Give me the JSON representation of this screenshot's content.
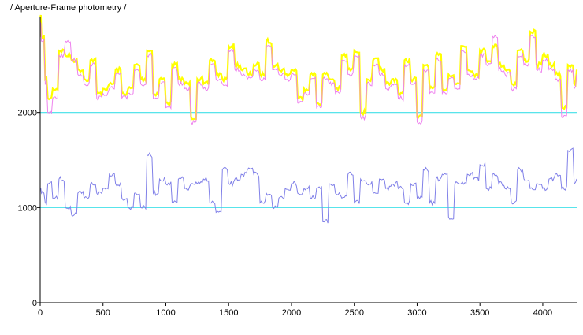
{
  "title": "/ Aperture-Frame photometry /",
  "chart_data": {
    "type": "line",
    "title": "/ Aperture-Frame photometry /",
    "xlabel": "",
    "ylabel": "",
    "xlim": [
      0,
      4270
    ],
    "ylim": [
      0,
      3000
    ],
    "x_ticks": [
      0,
      500,
      1000,
      1500,
      2000,
      2500,
      3000,
      3500,
      4000
    ],
    "y_ticks": [
      0,
      1000,
      2000
    ],
    "grid": false,
    "reference_lines": [
      {
        "y": 2000,
        "color": "#40e0e8"
      },
      {
        "y": 1000,
        "color": "#40e0e8"
      }
    ],
    "series": [
      {
        "color": "#ffff00",
        "x": [
          0,
          10,
          40,
          60,
          100,
          150,
          200,
          250,
          300,
          350,
          400,
          450,
          500,
          550,
          600,
          650,
          700,
          750,
          800,
          850,
          900,
          950,
          1000,
          1050,
          1100,
          1150,
          1200,
          1250,
          1300,
          1350,
          1400,
          1450,
          1500,
          1550,
          1600,
          1650,
          1700,
          1750,
          1800,
          1850,
          1900,
          1950,
          2000,
          2050,
          2100,
          2150,
          2200,
          2250,
          2300,
          2350,
          2400,
          2450,
          2500,
          2550,
          2600,
          2650,
          2700,
          2750,
          2800,
          2850,
          2900,
          2950,
          3000,
          3050,
          3100,
          3150,
          3200,
          3250,
          3300,
          3350,
          3400,
          3450,
          3500,
          3550,
          3600,
          3650,
          3700,
          3750,
          3800,
          3850,
          3900,
          3950,
          4000,
          4050,
          4100,
          4150,
          4200,
          4250,
          4270
        ],
        "y": [
          3000,
          2800,
          2350,
          2150,
          2250,
          2650,
          2600,
          2550,
          2450,
          2350,
          2550,
          2200,
          2250,
          2300,
          2450,
          2200,
          2250,
          2500,
          2350,
          2650,
          2200,
          2350,
          2100,
          2500,
          2350,
          2300,
          1950,
          2350,
          2300,
          2550,
          2400,
          2350,
          2700,
          2500,
          2450,
          2400,
          2500,
          2400,
          2750,
          2500,
          2450,
          2400,
          2450,
          2150,
          2250,
          2400,
          2100,
          2400,
          2350,
          2250,
          2600,
          2450,
          2650,
          2000,
          2350,
          2550,
          2450,
          2300,
          2350,
          2200,
          2550,
          2350,
          1950,
          2500,
          2250,
          2600,
          2250,
          2400,
          2300,
          2700,
          2450,
          2400,
          2650,
          2550,
          2700,
          2500,
          2450,
          2300,
          2650,
          2550,
          2850,
          2500,
          2600,
          2500,
          2400,
          2050,
          2500,
          2300,
          2450
        ]
      },
      {
        "color": "#ee82ee",
        "x": [
          0,
          10,
          40,
          60,
          100,
          150,
          200,
          250,
          300,
          350,
          400,
          450,
          500,
          550,
          600,
          650,
          700,
          750,
          800,
          850,
          900,
          950,
          1000,
          1050,
          1100,
          1150,
          1200,
          1250,
          1300,
          1350,
          1400,
          1450,
          1500,
          1550,
          1600,
          1650,
          1700,
          1750,
          1800,
          1850,
          1900,
          1950,
          2000,
          2050,
          2100,
          2150,
          2200,
          2250,
          2300,
          2350,
          2400,
          2450,
          2500,
          2550,
          2600,
          2650,
          2700,
          2750,
          2800,
          2850,
          2900,
          2950,
          3000,
          3050,
          3100,
          3150,
          3200,
          3250,
          3300,
          3350,
          3400,
          3450,
          3500,
          3550,
          3600,
          3650,
          3700,
          3750,
          3800,
          3850,
          3900,
          3950,
          4000,
          4050,
          4100,
          4150,
          4200,
          4250,
          4270
        ],
        "y": [
          2950,
          2750,
          2300,
          2000,
          2150,
          2600,
          2750,
          2550,
          2400,
          2300,
          2500,
          2150,
          2200,
          2250,
          2400,
          2150,
          2200,
          2450,
          2300,
          2600,
          2150,
          2300,
          2050,
          2450,
          2300,
          2250,
          1900,
          2300,
          2250,
          2500,
          2350,
          2300,
          2650,
          2450,
          2400,
          2350,
          2450,
          2350,
          2700,
          2450,
          2400,
          2350,
          2400,
          2100,
          2200,
          2350,
          2050,
          2350,
          2300,
          2200,
          2550,
          2400,
          2600,
          1950,
          2300,
          2500,
          2400,
          2250,
          2300,
          2150,
          2500,
          2300,
          1900,
          2450,
          2200,
          2550,
          2200,
          2350,
          2250,
          2650,
          2400,
          2350,
          2600,
          2500,
          2800,
          2450,
          2400,
          2250,
          2600,
          2500,
          2800,
          2450,
          2550,
          2450,
          2350,
          1950,
          2450,
          2250,
          2400
        ]
      },
      {
        "color": "#8080e8",
        "x": [
          0,
          10,
          40,
          60,
          100,
          150,
          200,
          250,
          300,
          350,
          400,
          450,
          500,
          550,
          600,
          650,
          700,
          750,
          800,
          850,
          900,
          950,
          1000,
          1050,
          1100,
          1150,
          1200,
          1250,
          1300,
          1350,
          1400,
          1450,
          1500,
          1550,
          1600,
          1650,
          1700,
          1750,
          1800,
          1850,
          1900,
          1950,
          2000,
          2050,
          2100,
          2150,
          2200,
          2250,
          2300,
          2350,
          2400,
          2450,
          2500,
          2550,
          2600,
          2650,
          2700,
          2750,
          2800,
          2850,
          2900,
          2950,
          3000,
          3050,
          3100,
          3150,
          3200,
          3250,
          3300,
          3350,
          3400,
          3450,
          3500,
          3550,
          3600,
          3650,
          3700,
          3750,
          3800,
          3850,
          3900,
          3950,
          4000,
          4050,
          4100,
          4150,
          4200,
          4250,
          4270
        ],
        "y": [
          1200,
          1150,
          1050,
          1250,
          1100,
          1300,
          1000,
          920,
          1150,
          1100,
          1250,
          1150,
          1200,
          1350,
          1250,
          1100,
          1000,
          1150,
          1000,
          1550,
          1150,
          1300,
          1250,
          1050,
          1300,
          1200,
          1250,
          1250,
          1300,
          1050,
          950,
          1400,
          1250,
          1300,
          1350,
          1400,
          1350,
          1050,
          1150,
          1000,
          1100,
          1200,
          1250,
          1150,
          1200,
          1100,
          1200,
          850,
          1250,
          1150,
          1100,
          1350,
          1050,
          1300,
          1250,
          1150,
          1300,
          1200,
          1250,
          1200,
          1050,
          1250,
          1100,
          1400,
          1050,
          1300,
          1350,
          900,
          1250,
          1250,
          1350,
          1300,
          1450,
          1200,
          1350,
          1250,
          1200,
          1050,
          1400,
          1300,
          1200,
          1250,
          1200,
          1300,
          1350,
          1200,
          1600,
          1250,
          1300
        ]
      }
    ]
  }
}
